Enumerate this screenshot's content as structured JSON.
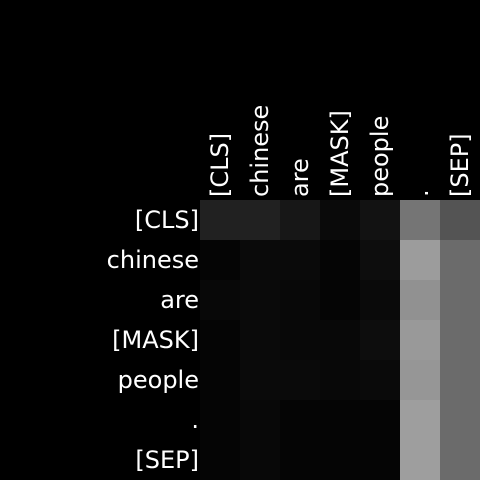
{
  "chart_data": {
    "type": "heatmap",
    "title": "",
    "xlabel": "",
    "ylabel": "",
    "colorscale": "grayscale",
    "value_range": [
      0,
      1
    ],
    "x_tokens": [
      "[CLS]",
      "chinese",
      "are",
      "[MASK]",
      "people",
      ".",
      "[SEP]"
    ],
    "y_tokens": [
      "[CLS]",
      "chinese",
      "are",
      "[MASK]",
      "people",
      ".",
      "[SEP]"
    ],
    "values": [
      [
        0.13,
        0.13,
        0.09,
        0.04,
        0.07,
        0.46,
        0.33
      ],
      [
        0.02,
        0.04,
        0.04,
        0.02,
        0.05,
        0.61,
        0.42
      ],
      [
        0.03,
        0.04,
        0.03,
        0.02,
        0.04,
        0.57,
        0.42
      ],
      [
        0.02,
        0.04,
        0.03,
        0.03,
        0.05,
        0.6,
        0.42
      ],
      [
        0.02,
        0.04,
        0.04,
        0.03,
        0.04,
        0.59,
        0.42
      ],
      [
        0.02,
        0.03,
        0.02,
        0.02,
        0.02,
        0.62,
        0.42
      ],
      [
        0.02,
        0.03,
        0.02,
        0.02,
        0.02,
        0.62,
        0.42
      ]
    ],
    "grid": false,
    "legend": "none"
  }
}
